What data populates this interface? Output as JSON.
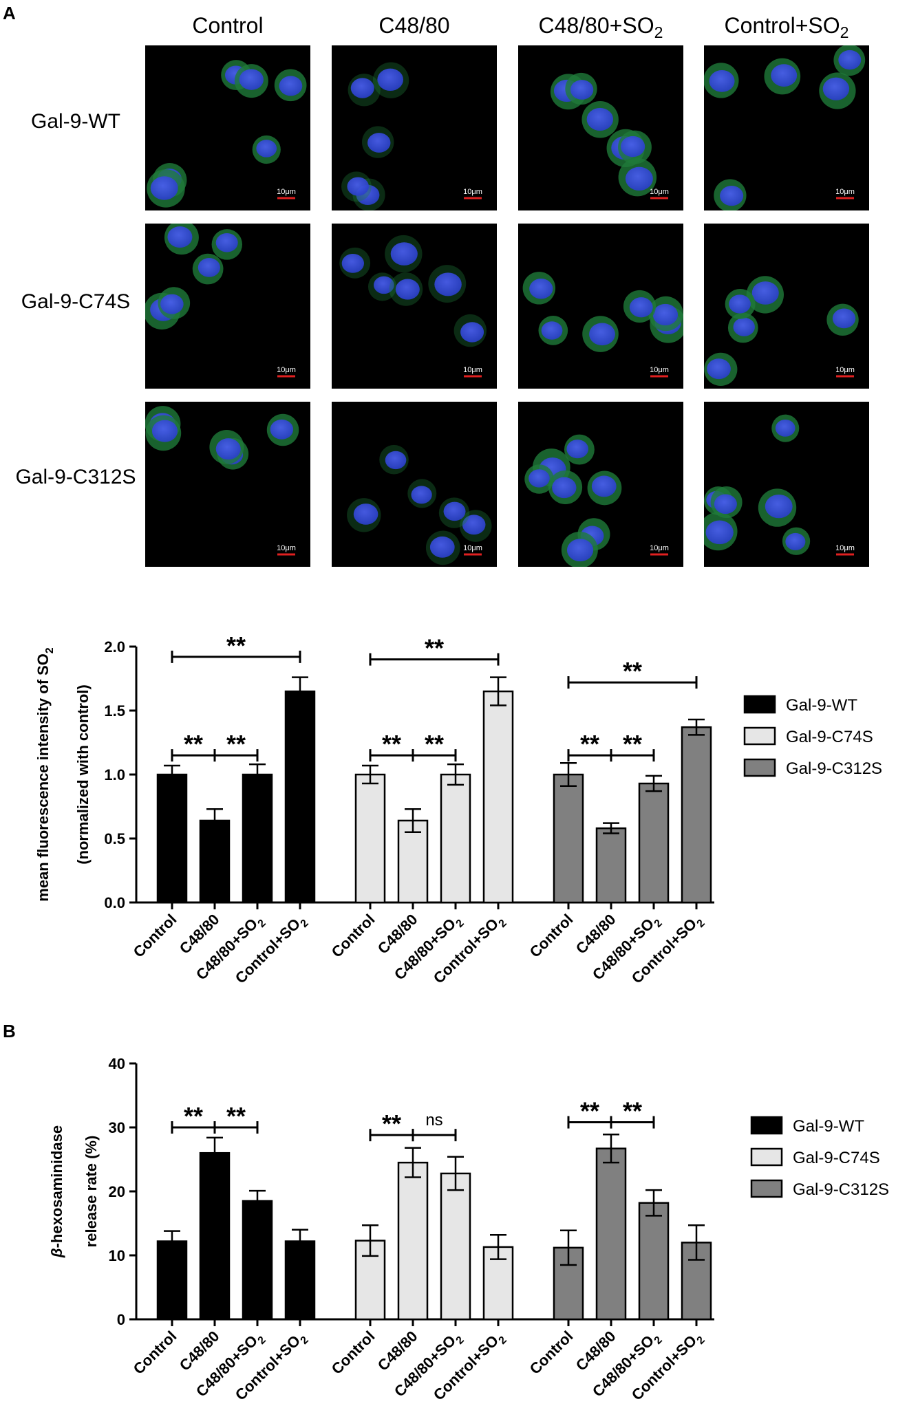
{
  "panels": {
    "a_label": "A",
    "b_label": "B"
  },
  "micrographs": {
    "columns": [
      "Control",
      "C48/80",
      "C48/80+SO",
      "Control+SO"
    ],
    "column_subscripts": [
      "",
      "",
      "2",
      "2"
    ],
    "rows": [
      "Gal-9-WT",
      "Gal-9-C74S",
      "Gal-9-C312S"
    ],
    "scale_bar_label": "10μm",
    "colors": {
      "background": "#000000",
      "nucleus": "#2a3fc9",
      "cytoplasm": "#1f7a3a",
      "scale_bar": "#e02020"
    }
  },
  "colors": {
    "wt": "#000000",
    "c74s": "#e6e6e6",
    "c312s": "#808080"
  },
  "chart_data": [
    {
      "type": "bar",
      "ylabel_line1": "mean fluorescence intensity of SO",
      "ylabel_line1_sub": "2",
      "ylabel_line2": "(normalized with control)",
      "ylim": [
        0,
        2.0
      ],
      "yticks": [
        "0.0",
        "0.5",
        "1.0",
        "1.5",
        "2.0"
      ],
      "ytick_values": [
        0,
        0.5,
        1.0,
        1.5,
        2.0
      ],
      "categories": [
        "Control",
        "C48/80",
        "C48/80+SO",
        "Control+SO"
      ],
      "category_subscripts": [
        "",
        "",
        "2",
        "2"
      ],
      "legend_position": "right",
      "series": [
        {
          "name": "Gal-9-WT",
          "values": [
            1.0,
            0.64,
            1.0,
            1.65
          ],
          "errors": [
            0.07,
            0.09,
            0.08,
            0.11
          ]
        },
        {
          "name": "Gal-9-C74S",
          "values": [
            1.0,
            0.64,
            1.0,
            1.65
          ],
          "errors": [
            0.07,
            0.09,
            0.08,
            0.11
          ]
        },
        {
          "name": "Gal-9-C312S",
          "values": [
            1.0,
            0.58,
            0.93,
            1.37
          ],
          "errors": [
            0.09,
            0.04,
            0.06,
            0.06
          ]
        }
      ],
      "significance": [
        {
          "series": 0,
          "from": 0,
          "to": 1,
          "label": "**",
          "y": 1.15
        },
        {
          "series": 0,
          "from": 1,
          "to": 2,
          "label": "**",
          "y": 1.15
        },
        {
          "series": 0,
          "from": 0,
          "to": 3,
          "label": "**",
          "y": 1.92
        },
        {
          "series": 1,
          "from": 0,
          "to": 1,
          "label": "**",
          "y": 1.15
        },
        {
          "series": 1,
          "from": 1,
          "to": 2,
          "label": "**",
          "y": 1.15
        },
        {
          "series": 1,
          "from": 0,
          "to": 3,
          "label": "**",
          "y": 1.9
        },
        {
          "series": 2,
          "from": 0,
          "to": 1,
          "label": "**",
          "y": 1.15
        },
        {
          "series": 2,
          "from": 1,
          "to": 2,
          "label": "**",
          "y": 1.15
        },
        {
          "series": 2,
          "from": 0,
          "to": 3,
          "label": "**",
          "y": 1.72
        }
      ]
    },
    {
      "type": "bar",
      "ylabel_line1": "β-hexosaminidase",
      "ylabel_line2": "release rate (%)",
      "ylim": [
        0,
        40
      ],
      "yticks": [
        "0",
        "10",
        "20",
        "30",
        "40"
      ],
      "ytick_values": [
        0,
        10,
        20,
        30,
        40
      ],
      "categories": [
        "Control",
        "C48/80",
        "C48/80+SO",
        "Control+SO"
      ],
      "category_subscripts": [
        "",
        "",
        "2",
        "2"
      ],
      "legend_position": "right",
      "series": [
        {
          "name": "Gal-9-WT",
          "values": [
            12.2,
            26.0,
            18.5,
            12.2
          ],
          "errors": [
            1.6,
            2.4,
            1.6,
            1.8
          ]
        },
        {
          "name": "Gal-9-C74S",
          "values": [
            12.3,
            24.5,
            22.8,
            11.3
          ],
          "errors": [
            2.4,
            2.3,
            2.6,
            1.9
          ]
        },
        {
          "name": "Gal-9-C312S",
          "values": [
            11.2,
            26.7,
            18.2,
            12.0
          ],
          "errors": [
            2.7,
            2.2,
            2.0,
            2.7
          ]
        }
      ],
      "significance": [
        {
          "series": 0,
          "from": 0,
          "to": 1,
          "label": "**",
          "y": 30.0
        },
        {
          "series": 0,
          "from": 1,
          "to": 2,
          "label": "**",
          "y": 30.0
        },
        {
          "series": 1,
          "from": 0,
          "to": 1,
          "label": "**",
          "y": 28.8
        },
        {
          "series": 1,
          "from": 1,
          "to": 2,
          "label": "ns",
          "y": 28.8
        },
        {
          "series": 2,
          "from": 0,
          "to": 1,
          "label": "**",
          "y": 30.8
        },
        {
          "series": 2,
          "from": 1,
          "to": 2,
          "label": "**",
          "y": 30.8
        }
      ]
    }
  ]
}
